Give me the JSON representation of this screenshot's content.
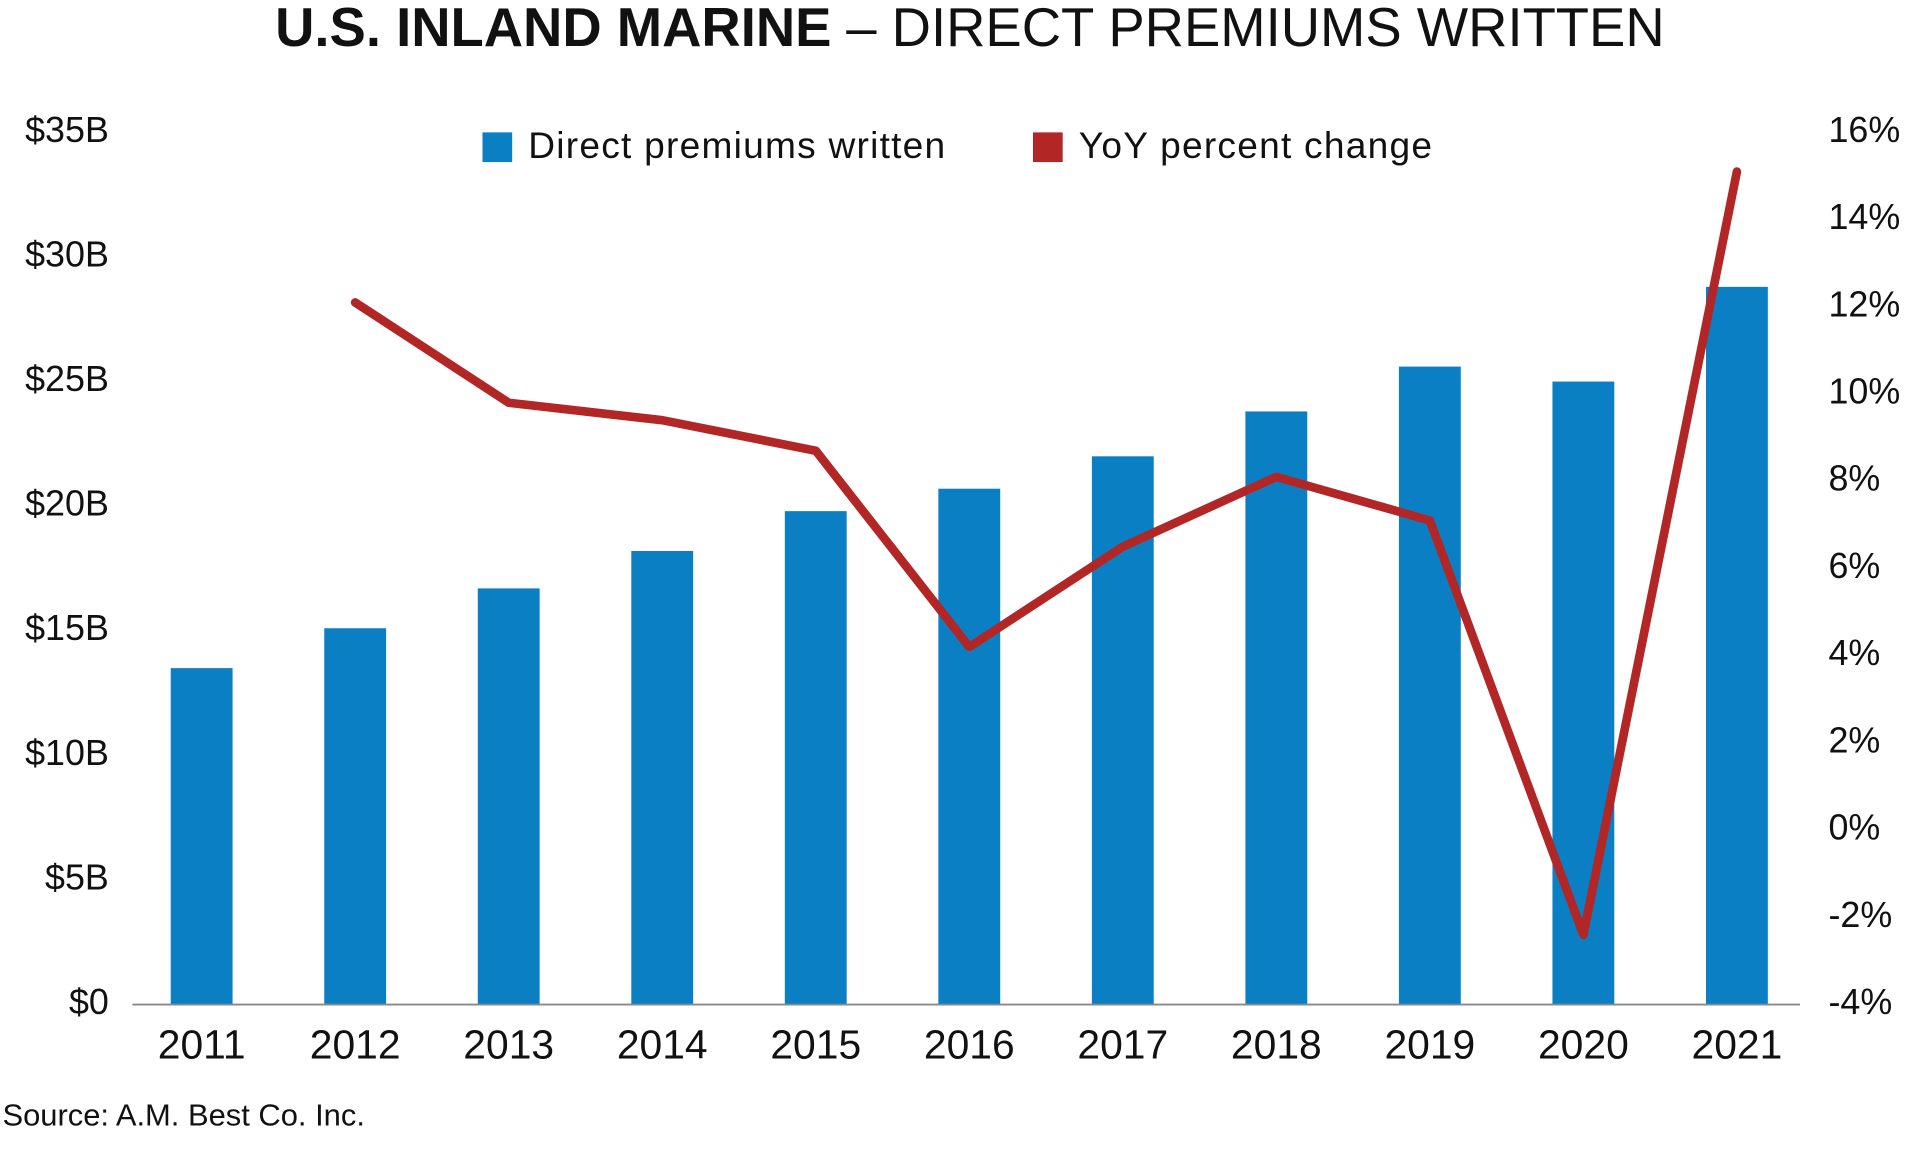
{
  "chart_data": {
    "type": "bar",
    "title": "U.S. INLAND MARINE",
    "subtitle": "– DIRECT PREMIUMS WRITTEN",
    "source": "Source: A.M. Best Co. Inc.",
    "categories": [
      "2011",
      "2012",
      "2013",
      "2014",
      "2015",
      "2016",
      "2017",
      "2018",
      "2019",
      "2020",
      "2021"
    ],
    "series": [
      {
        "name": "Direct premiums written",
        "type": "bar",
        "color": "#0b7fc4",
        "values": [
          13.5,
          15.1,
          16.7,
          18.2,
          19.8,
          20.7,
          22.0,
          23.8,
          25.6,
          25.0,
          28.8
        ]
      },
      {
        "name": "YoY percent change",
        "type": "line",
        "axis": "y2",
        "color": "#b22626",
        "values": [
          null,
          12.1,
          9.8,
          9.4,
          8.7,
          4.2,
          6.5,
          8.1,
          7.1,
          -2.4,
          15.1
        ]
      }
    ],
    "ylim": [
      0,
      35
    ],
    "yticks": [
      {
        "value": 0,
        "label": "$0"
      },
      {
        "value": 5,
        "label": "$5B"
      },
      {
        "value": 10,
        "label": "$10B"
      },
      {
        "value": 15,
        "label": "$15B"
      },
      {
        "value": 20,
        "label": "$20B"
      },
      {
        "value": 25,
        "label": "$25B"
      },
      {
        "value": 30,
        "label": "$30B"
      },
      {
        "value": 35,
        "label": "$35B"
      }
    ],
    "y2lim": [
      -4,
      16
    ],
    "y2ticks": [
      {
        "value": -4,
        "label": "-4%"
      },
      {
        "value": -2,
        "label": "-2%"
      },
      {
        "value": 0,
        "label": "0%"
      },
      {
        "value": 2,
        "label": "2%"
      },
      {
        "value": 4,
        "label": "4%"
      },
      {
        "value": 6,
        "label": "6%"
      },
      {
        "value": 8,
        "label": "8%"
      },
      {
        "value": 10,
        "label": "10%"
      },
      {
        "value": 12,
        "label": "12%"
      },
      {
        "value": 14,
        "label": "14%"
      },
      {
        "value": 16,
        "label": "16%"
      }
    ]
  }
}
